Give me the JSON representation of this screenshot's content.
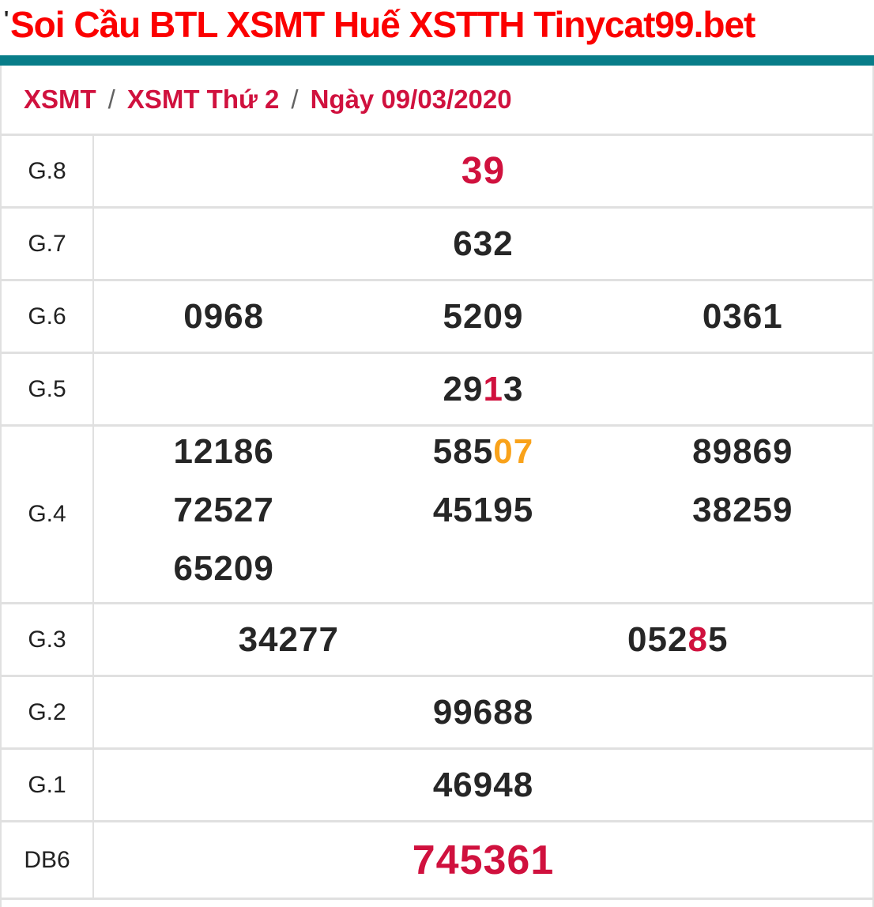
{
  "title": {
    "text": "Soi Cầu BTL XSMT Huế XSTTH Tinycat99.bet",
    "tick": "'"
  },
  "breadcrumb": {
    "items": [
      "XSMT",
      "XSMT Thứ 2",
      "Ngày 09/03/2020"
    ],
    "separator": "/"
  },
  "colors": {
    "title_red": "#fb0000",
    "crimson": "#d0113e",
    "orange": "#f9a21a",
    "dark": "#262626",
    "label": "#212121",
    "teal": "#087d89",
    "border": "#e0e0e0",
    "sep_gray": "#636363"
  },
  "results_table": {
    "rows": [
      {
        "label": "G.8",
        "size": "large",
        "cols": 1,
        "cells": [
          [
            {
              "text": "39",
              "color": "crimson"
            }
          ]
        ]
      },
      {
        "label": "G.7",
        "cols": 1,
        "cells": [
          [
            {
              "text": "632",
              "color": "dark"
            }
          ]
        ]
      },
      {
        "label": "G.6",
        "cols": 3,
        "cells": [
          [
            {
              "text": "0968",
              "color": "dark"
            }
          ],
          [
            {
              "text": "5209",
              "color": "dark"
            }
          ],
          [
            {
              "text": "0361",
              "color": "dark"
            }
          ]
        ]
      },
      {
        "label": "G.5",
        "cols": 1,
        "cells": [
          [
            {
              "text": "29",
              "color": "dark"
            },
            {
              "text": "1",
              "color": "crimson"
            },
            {
              "text": "3",
              "color": "dark"
            }
          ]
        ]
      },
      {
        "label": "G.4",
        "cols": 3,
        "cells": [
          [
            {
              "text": "12186",
              "color": "dark"
            }
          ],
          [
            {
              "text": "585",
              "color": "dark"
            },
            {
              "text": "07",
              "color": "orange"
            }
          ],
          [
            {
              "text": "89869",
              "color": "dark"
            }
          ],
          [
            {
              "text": "72527",
              "color": "dark"
            }
          ],
          [
            {
              "text": "45195",
              "color": "dark"
            }
          ],
          [
            {
              "text": "38259",
              "color": "dark"
            }
          ],
          [
            {
              "text": "65209",
              "color": "dark"
            }
          ]
        ]
      },
      {
        "label": "G.3",
        "cols": 2,
        "cells": [
          [
            {
              "text": "34277",
              "color": "dark"
            }
          ],
          [
            {
              "text": "052",
              "color": "dark"
            },
            {
              "text": "8",
              "color": "crimson"
            },
            {
              "text": "5",
              "color": "dark"
            }
          ]
        ]
      },
      {
        "label": "G.2",
        "cols": 1,
        "cells": [
          [
            {
              "text": "99688",
              "color": "dark"
            }
          ]
        ]
      },
      {
        "label": "G.1",
        "cols": 1,
        "cells": [
          [
            {
              "text": "46948",
              "color": "dark"
            }
          ]
        ]
      },
      {
        "label": "DB6",
        "size": "xlarge",
        "cols": 1,
        "cells": [
          [
            {
              "text": "745361",
              "color": "crimson"
            }
          ]
        ]
      }
    ]
  }
}
